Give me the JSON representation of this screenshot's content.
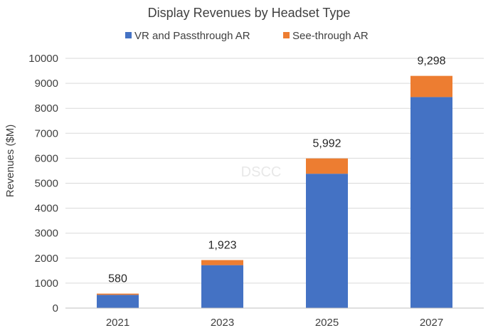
{
  "chart_data": {
    "type": "bar",
    "stacked": true,
    "title": "Display Revenues by Headset Type",
    "xlabel": "",
    "ylabel": "Revenues ($M)",
    "ylim": [
      0,
      10000
    ],
    "yticks": [
      0,
      1000,
      2000,
      3000,
      4000,
      5000,
      6000,
      7000,
      8000,
      9000,
      10000
    ],
    "categories": [
      "2021",
      "2023",
      "2025",
      "2027"
    ],
    "series": [
      {
        "name": "VR and Passthrough AR",
        "color": "#4472C4",
        "values": [
          530,
          1720,
          5380,
          8450
        ]
      },
      {
        "name": "See-through AR",
        "color": "#ED7D31",
        "values": [
          50,
          203,
          612,
          848
        ]
      }
    ],
    "totals": [
      "580",
      "1,923",
      "5,992",
      "9,298"
    ],
    "grid": true,
    "legend_position": "top",
    "watermark": "DSCC"
  }
}
